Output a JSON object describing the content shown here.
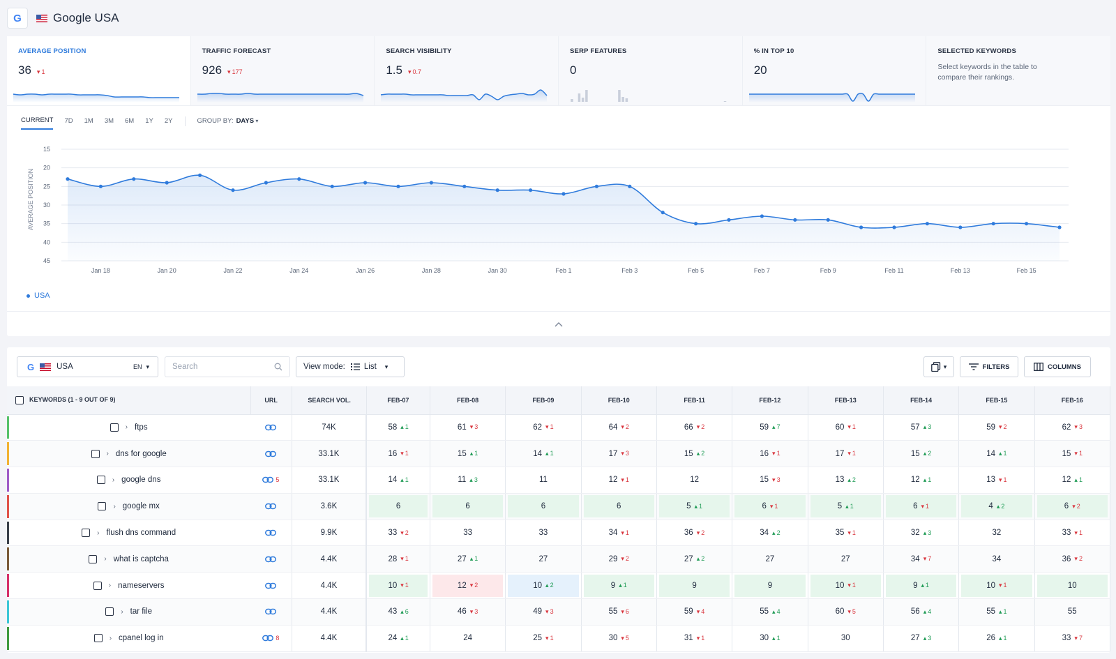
{
  "header": {
    "title": "Google USA",
    "logo_letter": "G"
  },
  "metrics": [
    {
      "label": "AVERAGE POSITION",
      "value": "36",
      "delta": "1",
      "dir": "down",
      "spark": [
        12,
        13,
        12,
        12,
        13,
        12,
        12,
        12,
        12,
        13,
        13,
        13,
        13,
        14,
        16,
        16,
        16,
        16,
        16,
        17,
        17,
        17,
        17,
        17
      ]
    },
    {
      "label": "TRAFFIC FORECAST",
      "value": "926",
      "delta": "177",
      "dir": "down",
      "spark": [
        12,
        12,
        11,
        11,
        12,
        12,
        12,
        11,
        12,
        12,
        12,
        12,
        12,
        12,
        12,
        12,
        12,
        12,
        12,
        12,
        12,
        12,
        11,
        14
      ]
    },
    {
      "label": "SEARCH VISIBILITY",
      "value": "1.5",
      "delta": "0.7",
      "dir": "down",
      "spark": [
        13,
        12,
        12,
        12,
        12,
        13,
        13,
        13,
        13,
        13,
        13,
        14,
        14,
        14,
        14,
        13,
        20,
        12,
        15,
        20,
        15,
        13,
        12,
        11,
        13,
        12,
        6,
        14
      ]
    },
    {
      "label": "SERP FEATURES",
      "value": "0",
      "delta": "",
      "dir": "",
      "bars": [
        0,
        4,
        0,
        12,
        6,
        17,
        0,
        0,
        0,
        0,
        0,
        0,
        0,
        0,
        17,
        7,
        5,
        0,
        0,
        0,
        0,
        0,
        0,
        0,
        0,
        0,
        0,
        0,
        0,
        0,
        0,
        0,
        0,
        0,
        0,
        0,
        0,
        0,
        0,
        0,
        0,
        0,
        0,
        1
      ]
    },
    {
      "label": "% IN TOP 10",
      "value": "20",
      "delta": "",
      "dir": "",
      "spark": [
        12,
        12,
        12,
        12,
        12,
        12,
        12,
        12,
        12,
        12,
        12,
        12,
        12,
        12,
        12,
        12,
        12,
        12,
        12,
        12,
        22,
        12,
        12,
        22,
        12,
        12,
        12,
        12,
        12,
        12,
        12,
        12,
        12
      ]
    },
    {
      "label": "SELECTED KEYWORDS",
      "value": "",
      "delta": "",
      "dir": "",
      "desc": "Select keywords in the table to compare their rankings."
    }
  ],
  "ranges": {
    "items": [
      "CURRENT",
      "7D",
      "1M",
      "3M",
      "6M",
      "1Y",
      "2Y"
    ],
    "active": "CURRENT",
    "group_label": "GROUP BY:",
    "group_value": "DAYS"
  },
  "chart_data": {
    "type": "line",
    "ylabel": "AVERAGE POSITION",
    "yticks": [
      15,
      20,
      25,
      30,
      35,
      40,
      45
    ],
    "ylim": [
      15,
      45
    ],
    "y_inverted": false,
    "x_tick_labels": [
      "Jan 18",
      "Jan 20",
      "Jan 22",
      "Jan 24",
      "Jan 26",
      "Jan 28",
      "Jan 30",
      "Feb 1",
      "Feb 3",
      "Feb 5",
      "Feb 7",
      "Feb 9",
      "Feb 11",
      "Feb 13",
      "Feb 15"
    ],
    "x": [
      "Jan 17",
      "Jan 18",
      "Jan 19",
      "Jan 20",
      "Jan 21",
      "Jan 22",
      "Jan 23",
      "Jan 24",
      "Jan 25",
      "Jan 26",
      "Jan 27",
      "Jan 28",
      "Jan 29",
      "Jan 30",
      "Jan 31",
      "Feb 1",
      "Feb 2",
      "Feb 3",
      "Feb 4",
      "Feb 5",
      "Feb 6",
      "Feb 7",
      "Feb 8",
      "Feb 9",
      "Feb 10",
      "Feb 11",
      "Feb 12",
      "Feb 13",
      "Feb 14",
      "Feb 15",
      "Feb 16"
    ],
    "series": [
      {
        "name": "USA",
        "color": "#2f7bdc",
        "values": [
          23,
          25,
          23,
          24,
          22,
          26,
          24,
          23,
          25,
          24,
          25,
          24,
          25,
          26,
          26,
          27,
          25,
          25,
          32,
          35,
          34,
          33,
          34,
          34,
          36,
          36,
          35,
          36,
          35,
          35,
          36
        ]
      }
    ],
    "grid": true,
    "legend": "bottom-left"
  },
  "toolbar": {
    "source": "USA",
    "lang": "EN",
    "search_placeholder": "Search",
    "view_mode_label": "View mode:",
    "view_mode_value": "List",
    "filters_label": "FILTERS",
    "columns_label": "COLUMNS"
  },
  "table": {
    "headers": {
      "keywords": "KEYWORDS (1 - 9 OUT OF 9)",
      "url": "URL",
      "volume": "SEARCH VOL."
    },
    "dates": [
      "FEB-07",
      "FEB-08",
      "FEB-09",
      "FEB-10",
      "FEB-11",
      "FEB-12",
      "FEB-13",
      "FEB-14",
      "FEB-15",
      "FEB-16"
    ],
    "rows": [
      {
        "kw": "ftps",
        "color": "#56c26a",
        "links": "",
        "vol": "74K",
        "pos": [
          [
            "58",
            "1",
            "up",
            ""
          ],
          [
            "61",
            "3",
            "down",
            ""
          ],
          [
            "62",
            "1",
            "down",
            ""
          ],
          [
            "64",
            "2",
            "down",
            ""
          ],
          [
            "66",
            "2",
            "down",
            ""
          ],
          [
            "59",
            "7",
            "up",
            ""
          ],
          [
            "60",
            "1",
            "down",
            ""
          ],
          [
            "57",
            "3",
            "up",
            ""
          ],
          [
            "59",
            "2",
            "down",
            ""
          ],
          [
            "62",
            "3",
            "down",
            ""
          ]
        ]
      },
      {
        "kw": "dns for google",
        "color": "#f2b233",
        "links": "",
        "vol": "33.1K",
        "pos": [
          [
            "16",
            "1",
            "down",
            ""
          ],
          [
            "15",
            "1",
            "up",
            ""
          ],
          [
            "14",
            "1",
            "up",
            ""
          ],
          [
            "17",
            "3",
            "down",
            ""
          ],
          [
            "15",
            "2",
            "up",
            ""
          ],
          [
            "16",
            "1",
            "down",
            ""
          ],
          [
            "17",
            "1",
            "down",
            ""
          ],
          [
            "15",
            "2",
            "up",
            ""
          ],
          [
            "14",
            "1",
            "up",
            ""
          ],
          [
            "15",
            "1",
            "down",
            ""
          ]
        ]
      },
      {
        "kw": "google dns",
        "color": "#a05cc7",
        "links": "5",
        "vol": "33.1K",
        "pos": [
          [
            "14",
            "1",
            "up",
            ""
          ],
          [
            "11",
            "3",
            "up",
            ""
          ],
          [
            "11",
            "",
            "",
            ""
          ],
          [
            "12",
            "1",
            "down",
            ""
          ],
          [
            "12",
            "",
            "",
            ""
          ],
          [
            "15",
            "3",
            "down",
            ""
          ],
          [
            "13",
            "2",
            "up",
            ""
          ],
          [
            "12",
            "1",
            "up",
            ""
          ],
          [
            "13",
            "1",
            "down",
            ""
          ],
          [
            "12",
            "1",
            "up",
            ""
          ]
        ]
      },
      {
        "kw": "google mx",
        "color": "#e0524a",
        "links": "",
        "vol": "3.6K",
        "pos": [
          [
            "6",
            "",
            "",
            "green"
          ],
          [
            "6",
            "",
            "",
            "green"
          ],
          [
            "6",
            "",
            "",
            "green"
          ],
          [
            "6",
            "",
            "",
            "green"
          ],
          [
            "5",
            "1",
            "up",
            "green"
          ],
          [
            "6",
            "1",
            "down",
            "green"
          ],
          [
            "5",
            "1",
            "up",
            "green"
          ],
          [
            "6",
            "1",
            "down",
            "green"
          ],
          [
            "4",
            "2",
            "up",
            "green"
          ],
          [
            "6",
            "2",
            "down",
            "green"
          ]
        ]
      },
      {
        "kw": "flush dns command",
        "color": "#3a3f4a",
        "links": "",
        "vol": "9.9K",
        "pos": [
          [
            "33",
            "2",
            "down",
            ""
          ],
          [
            "33",
            "",
            "",
            ""
          ],
          [
            "33",
            "",
            "",
            ""
          ],
          [
            "34",
            "1",
            "down",
            ""
          ],
          [
            "36",
            "2",
            "down",
            ""
          ],
          [
            "34",
            "2",
            "up",
            ""
          ],
          [
            "35",
            "1",
            "down",
            ""
          ],
          [
            "32",
            "3",
            "up",
            ""
          ],
          [
            "32",
            "",
            "",
            ""
          ],
          [
            "33",
            "1",
            "down",
            ""
          ]
        ]
      },
      {
        "kw": "what is captcha",
        "color": "#7a5a3a",
        "links": "",
        "vol": "4.4K",
        "pos": [
          [
            "28",
            "1",
            "down",
            ""
          ],
          [
            "27",
            "1",
            "up",
            ""
          ],
          [
            "27",
            "",
            "",
            ""
          ],
          [
            "29",
            "2",
            "down",
            ""
          ],
          [
            "27",
            "2",
            "up",
            ""
          ],
          [
            "27",
            "",
            "",
            ""
          ],
          [
            "27",
            "",
            "",
            ""
          ],
          [
            "34",
            "7",
            "down",
            ""
          ],
          [
            "34",
            "",
            "",
            ""
          ],
          [
            "36",
            "2",
            "down",
            ""
          ]
        ]
      },
      {
        "kw": "nameservers",
        "color": "#d6306a",
        "links": "",
        "vol": "4.4K",
        "pos": [
          [
            "10",
            "1",
            "down",
            "green"
          ],
          [
            "12",
            "2",
            "down",
            "red"
          ],
          [
            "10",
            "2",
            "up",
            "blue"
          ],
          [
            "9",
            "1",
            "up",
            "green"
          ],
          [
            "9",
            "",
            "",
            "green"
          ],
          [
            "9",
            "",
            "",
            "green"
          ],
          [
            "10",
            "1",
            "down",
            "green"
          ],
          [
            "9",
            "1",
            "up",
            "green"
          ],
          [
            "10",
            "1",
            "down",
            "green"
          ],
          [
            "10",
            "",
            "",
            "green"
          ]
        ]
      },
      {
        "kw": "tar file",
        "color": "#3cc6d6",
        "links": "",
        "vol": "4.4K",
        "pos": [
          [
            "43",
            "6",
            "up",
            ""
          ],
          [
            "46",
            "3",
            "down",
            ""
          ],
          [
            "49",
            "3",
            "down",
            ""
          ],
          [
            "55",
            "6",
            "down",
            ""
          ],
          [
            "59",
            "4",
            "down",
            ""
          ],
          [
            "55",
            "4",
            "up",
            ""
          ],
          [
            "60",
            "5",
            "down",
            ""
          ],
          [
            "56",
            "4",
            "up",
            ""
          ],
          [
            "55",
            "1",
            "up",
            ""
          ],
          [
            "55",
            "",
            "",
            ""
          ]
        ]
      },
      {
        "kw": "cpanel log in",
        "color": "#3f9a3f",
        "links": "8",
        "vol": "4.4K",
        "pos": [
          [
            "24",
            "1",
            "up",
            ""
          ],
          [
            "24",
            "",
            "",
            ""
          ],
          [
            "25",
            "1",
            "down",
            ""
          ],
          [
            "30",
            "5",
            "down",
            ""
          ],
          [
            "31",
            "1",
            "down",
            ""
          ],
          [
            "30",
            "1",
            "up",
            ""
          ],
          [
            "30",
            "",
            "",
            ""
          ],
          [
            "27",
            "3",
            "up",
            ""
          ],
          [
            "26",
            "1",
            "up",
            ""
          ],
          [
            "33",
            "7",
            "down",
            ""
          ]
        ]
      }
    ]
  }
}
